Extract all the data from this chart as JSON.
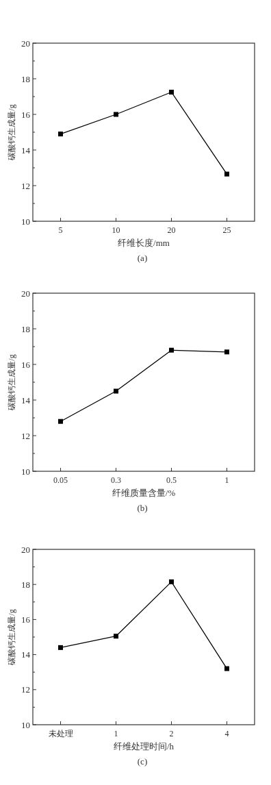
{
  "chart_data": [
    {
      "type": "line",
      "categories": [
        "5",
        "10",
        "20",
        "25"
      ],
      "values": [
        14.9,
        16.0,
        17.25,
        12.65
      ],
      "color": "#000000",
      "marker": "square",
      "line_style": "solid",
      "xlabel": "纤维长度/mm",
      "ylabel": "碳酸钙生成量/g",
      "ylim": [
        10,
        20
      ],
      "yticks": [
        10,
        {
          "value": 11,
          "label": null
        },
        12,
        {
          "value": 13,
          "label": null
        },
        14,
        {
          "value": 15,
          "label": null
        },
        16,
        {
          "value": 17,
          "label": null
        },
        18,
        {
          "value": 19,
          "label": null
        },
        20
      ],
      "annotations": [
        "(a)"
      ]
    },
    {
      "type": "line",
      "categories": [
        "0.05",
        "0.3",
        "0.5",
        "1"
      ],
      "values": [
        12.8,
        14.5,
        16.8,
        16.7
      ],
      "color": "#000000",
      "marker": "square",
      "line_style": "solid",
      "xlabel": "纤维质量含量/%",
      "ylabel": "碳酸钙生成量/g",
      "ylim": [
        10,
        20
      ],
      "yticks": [
        10,
        {
          "value": 11,
          "label": null
        },
        12,
        {
          "value": 13,
          "label": null
        },
        14,
        {
          "value": 15,
          "label": null
        },
        16,
        {
          "value": 17,
          "label": null
        },
        18,
        {
          "value": 19,
          "label": null
        },
        20
      ],
      "annotations": [
        "(b)"
      ]
    },
    {
      "type": "line",
      "categories": [
        "未处理",
        "1",
        "2",
        "4"
      ],
      "values": [
        14.4,
        15.05,
        18.15,
        13.2
      ],
      "color": "#000000",
      "marker": "square",
      "line_style": "solid",
      "xlabel": "纤维处理时间/h",
      "ylabel": "碳酸钙生成量/g",
      "ylim": [
        10,
        20
      ],
      "yticks": [
        10,
        {
          "value": 11,
          "label": null
        },
        12,
        {
          "value": 13,
          "label": null
        },
        14,
        {
          "value": 15,
          "label": null
        },
        16,
        {
          "value": 17,
          "label": null
        },
        18,
        {
          "value": 19,
          "label": null
        },
        20
      ],
      "annotations": [
        "(c)"
      ]
    }
  ]
}
